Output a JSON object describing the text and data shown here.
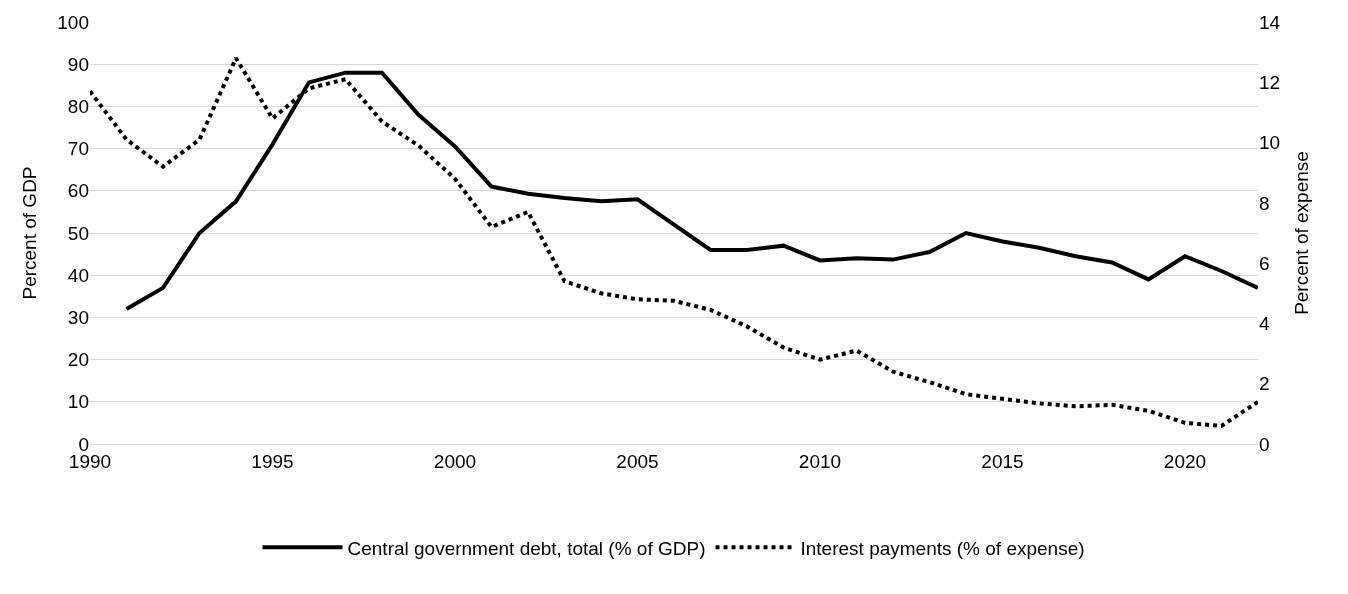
{
  "chart_data": {
    "type": "line",
    "ylabel": "Percent of GDP",
    "y2label": "Percent of expense",
    "x": [
      1990,
      1991,
      1992,
      1993,
      1994,
      1995,
      1996,
      1997,
      1998,
      1999,
      2000,
      2001,
      2002,
      2003,
      2004,
      2005,
      2006,
      2007,
      2008,
      2009,
      2010,
      2011,
      2012,
      2013,
      2014,
      2015,
      2016,
      2017,
      2018,
      2019,
      2020,
      2021,
      2022
    ],
    "series": [
      {
        "name": "Central government debt, total (% of GDP)",
        "color": "#000000",
        "line_style": "solid",
        "values": [
          null,
          32,
          37,
          50,
          57.5,
          71,
          85.7,
          88,
          88,
          78,
          70.5,
          61,
          59.3,
          58.3,
          57.5,
          58,
          52,
          46,
          46,
          47,
          43.5,
          44,
          43.7,
          45.5,
          50,
          48,
          46.5,
          44.5,
          43,
          39,
          44.5,
          41,
          37
        ]
      },
      {
        "name": "Interest payments (% of expense)",
        "color": "#000000",
        "line_style": "dotted",
        "axis": "y2",
        "values": [
          11.7,
          10.1,
          9.2,
          10.1,
          12.8,
          10.8,
          11.8,
          12.1,
          10.7,
          9.9,
          8.8,
          7.2,
          7.7,
          5.4,
          5.0,
          4.8,
          4.75,
          4.45,
          3.9,
          3.2,
          2.8,
          3.1,
          2.4,
          2.05,
          1.65,
          1.5,
          1.35,
          1.25,
          1.3,
          1.1,
          0.7,
          0.6,
          1.4
        ]
      }
    ],
    "xlim": [
      1990,
      2022
    ],
    "xticks": [
      1990,
      1995,
      2000,
      2005,
      2010,
      2015,
      2020
    ],
    "ylim": [
      0,
      100
    ],
    "yticks": [
      0,
      10,
      20,
      30,
      40,
      50,
      60,
      70,
      80,
      90,
      100
    ],
    "y2lim": [
      0,
      14
    ],
    "y2ticks": [
      0,
      2,
      4,
      6,
      8,
      10,
      12,
      14
    ],
    "grid": "y",
    "legend": "bottom",
    "marker": "none"
  }
}
